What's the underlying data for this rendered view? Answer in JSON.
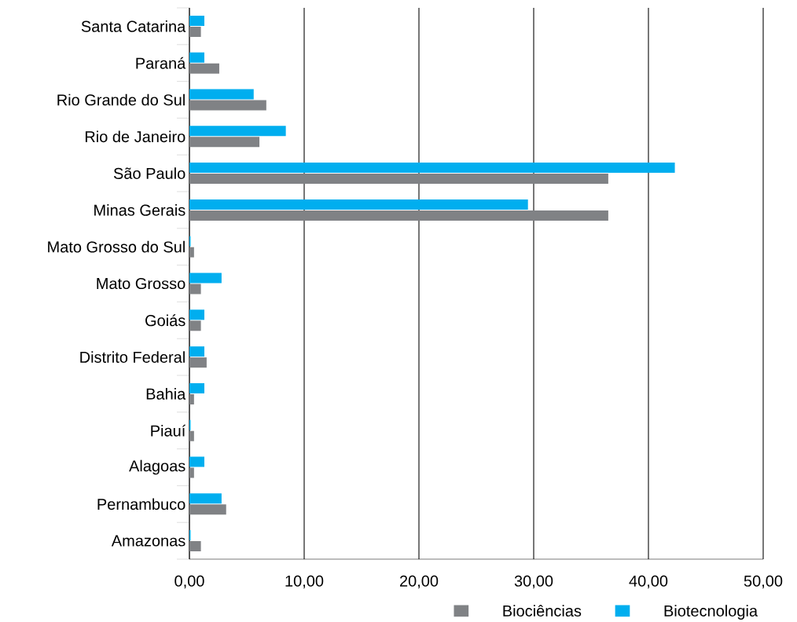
{
  "chart_data": {
    "type": "bar",
    "orientation": "horizontal",
    "categories": [
      "Santa Catarina",
      "Paraná",
      "Rio Grande do Sul",
      "Rio de Janeiro",
      "São Paulo",
      "Minas Gerais",
      "Mato Grosso do Sul",
      "Mato Grosso",
      "Goiás",
      "Distrito Federal",
      "Bahia",
      "Piauí",
      "Alagoas",
      "Pernambuco",
      "Amazonas"
    ],
    "series": [
      {
        "name": "Biociências",
        "color": "#808285",
        "values": [
          1.0,
          2.6,
          6.7,
          6.1,
          36.5,
          36.5,
          0.4,
          1.0,
          1.0,
          1.5,
          0.4,
          0.4,
          0.4,
          3.2,
          1.0
        ]
      },
      {
        "name": "Biotecnologia",
        "color": "#00aeef",
        "values": [
          1.3,
          1.3,
          5.6,
          8.4,
          42.3,
          29.5,
          0.1,
          2.8,
          1.3,
          1.3,
          1.3,
          0.1,
          1.3,
          2.8,
          0.1
        ]
      }
    ],
    "xlim": [
      0,
      50
    ],
    "xticks": [
      {
        "value": 0,
        "label": "0,00"
      },
      {
        "value": 10,
        "label": "10,00"
      },
      {
        "value": 20,
        "label": "20,00"
      },
      {
        "value": 30,
        "label": "30,00"
      },
      {
        "value": 40,
        "label": "40,00"
      },
      {
        "value": 50,
        "label": "50,00"
      }
    ],
    "grid": "x",
    "legend": "bottom right"
  }
}
